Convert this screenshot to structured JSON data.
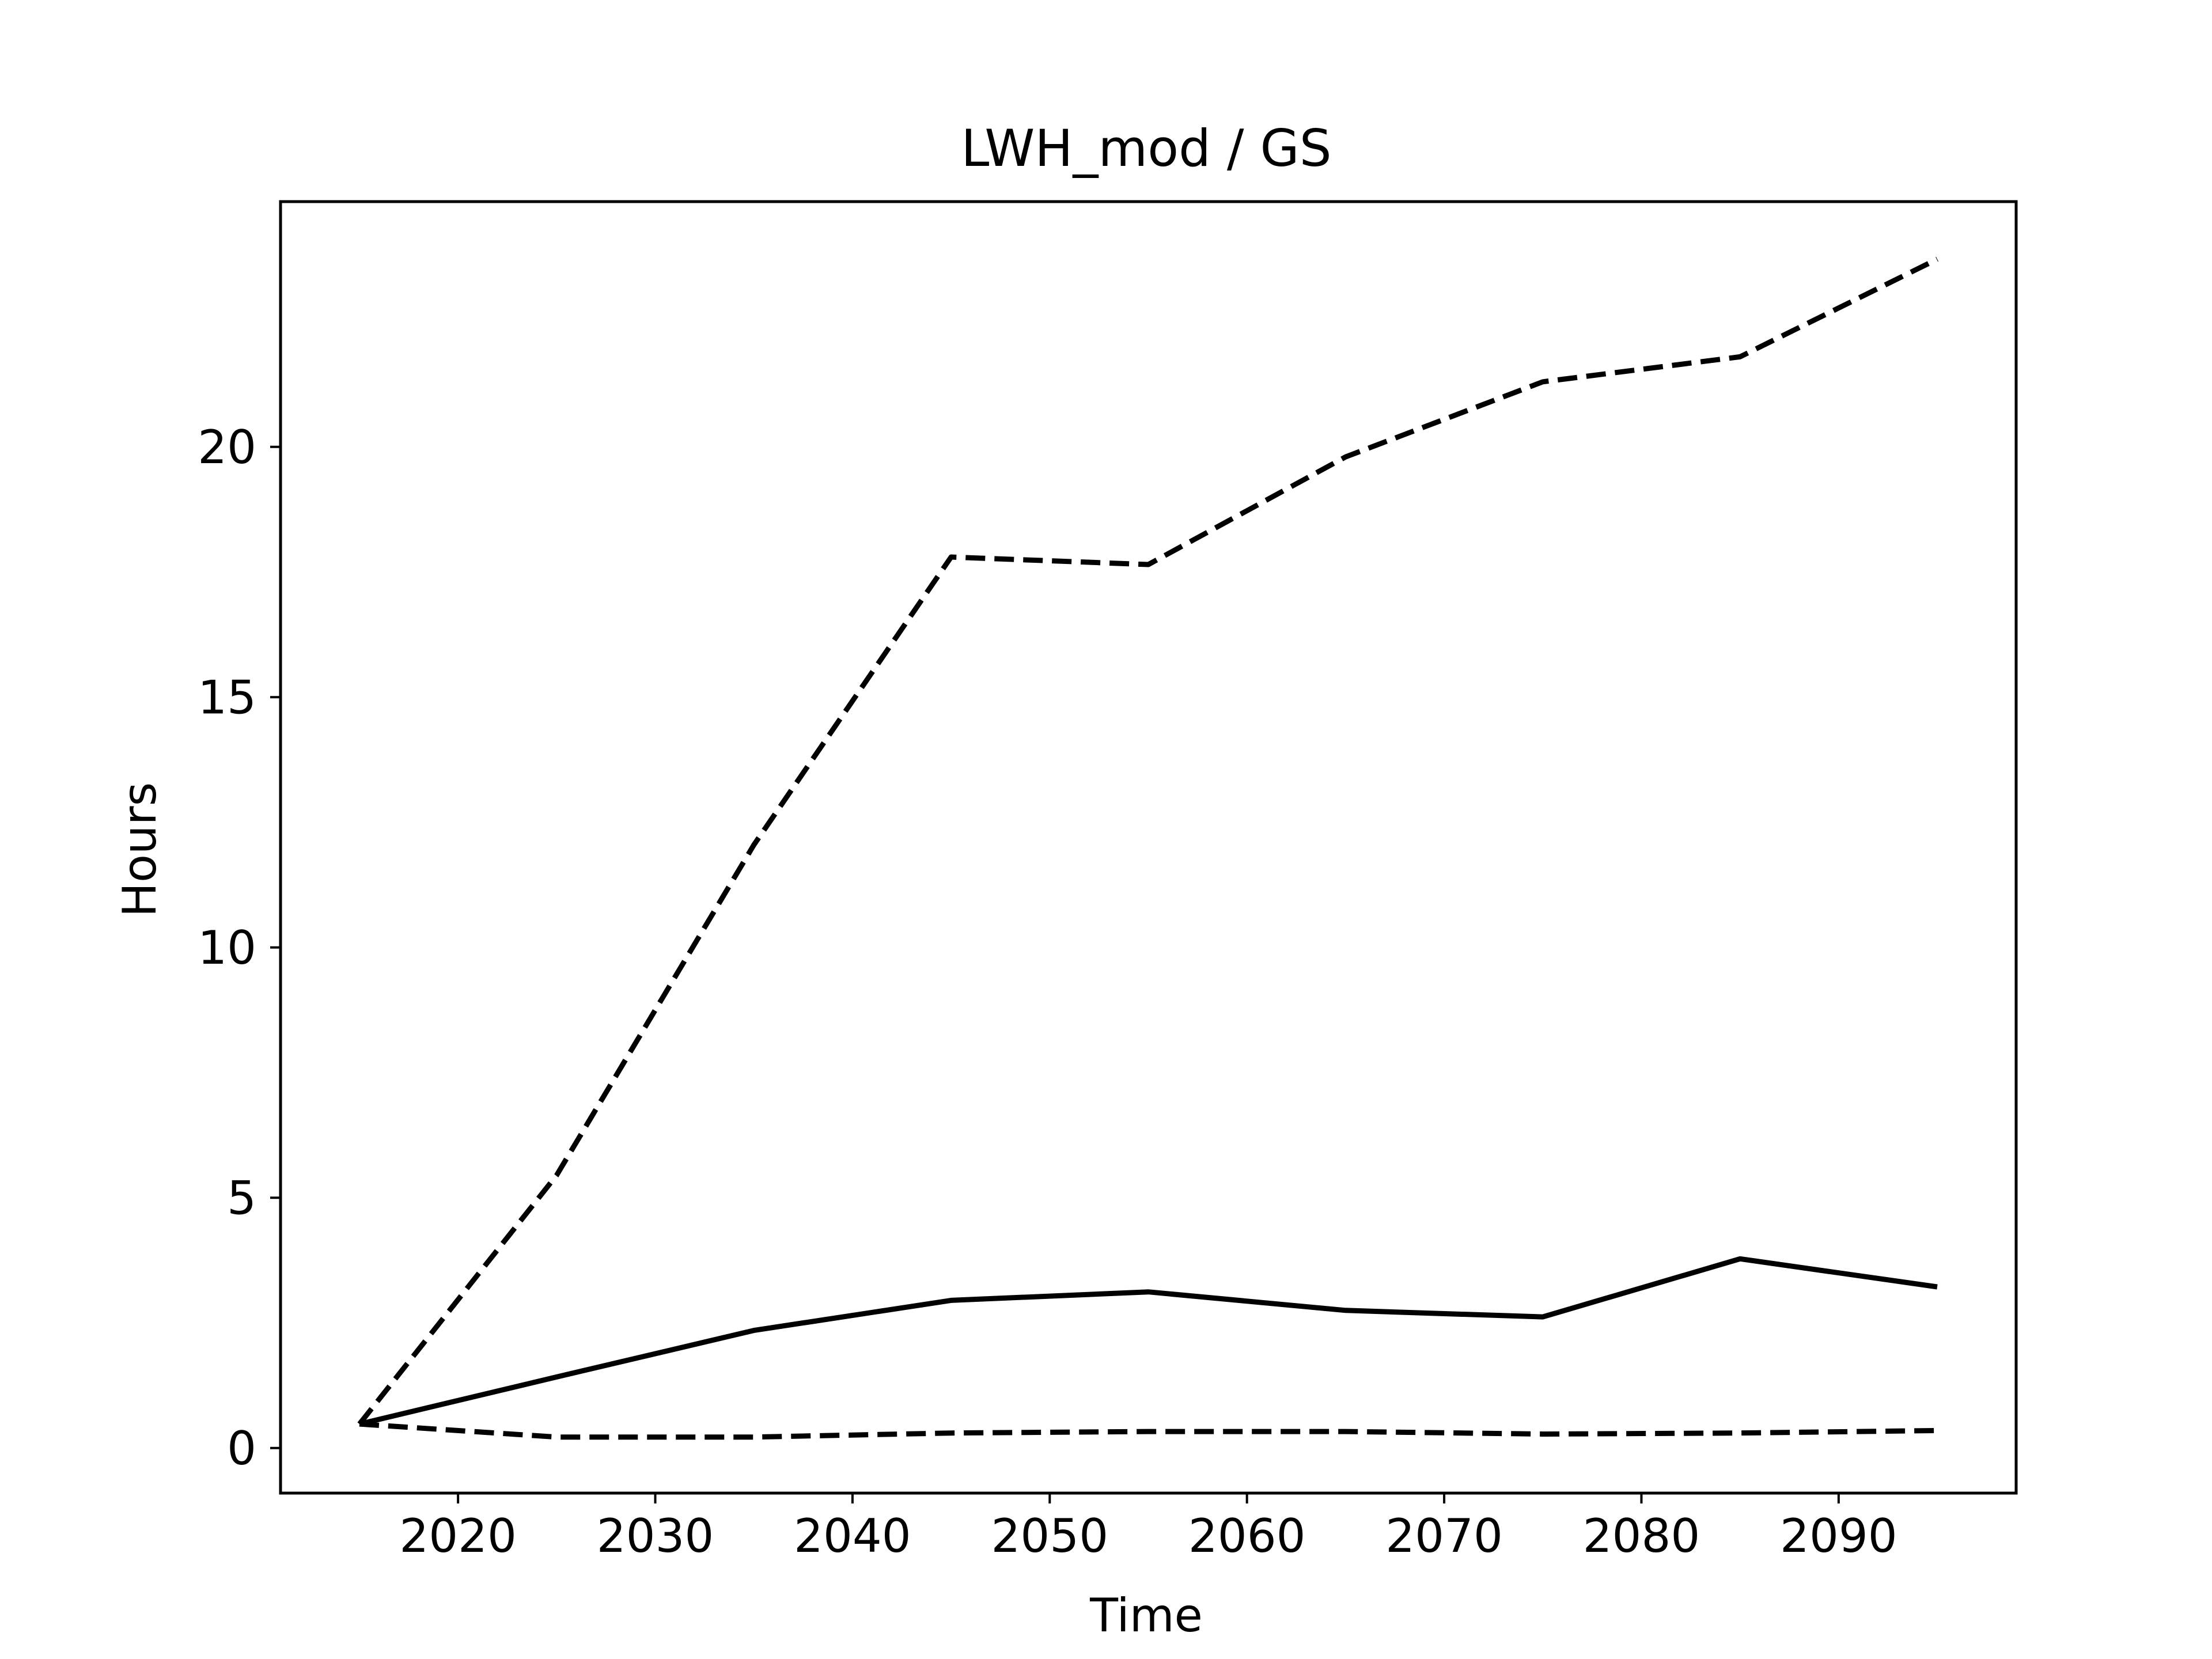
{
  "chart_data": {
    "type": "line",
    "title": "LWH_mod / GS",
    "xlabel": "Time",
    "ylabel": "Hours",
    "xlim": [
      2011,
      2099
    ],
    "ylim": [
      -0.9,
      24.9
    ],
    "x_ticks": [
      2020,
      2030,
      2040,
      2050,
      2060,
      2070,
      2080,
      2090
    ],
    "y_ticks": [
      0,
      5,
      10,
      15,
      20
    ],
    "grid": false,
    "legend": "none",
    "x": [
      2015,
      2025,
      2035,
      2045,
      2055,
      2065,
      2075,
      2085,
      2095
    ],
    "series": [
      {
        "style": "dashed",
        "color": "#000000",
        "values": [
          0.48,
          5.45,
          12.05,
          17.8,
          17.65,
          19.8,
          21.3,
          21.8,
          23.75
        ]
      },
      {
        "style": "solid",
        "color": "#000000",
        "values": [
          0.48,
          1.42,
          2.35,
          2.95,
          3.12,
          2.75,
          2.62,
          3.78,
          3.22
        ]
      },
      {
        "style": "dashed",
        "color": "#000000",
        "values": [
          0.48,
          0.22,
          0.22,
          0.3,
          0.33,
          0.33,
          0.28,
          0.3,
          0.35
        ]
      }
    ]
  }
}
